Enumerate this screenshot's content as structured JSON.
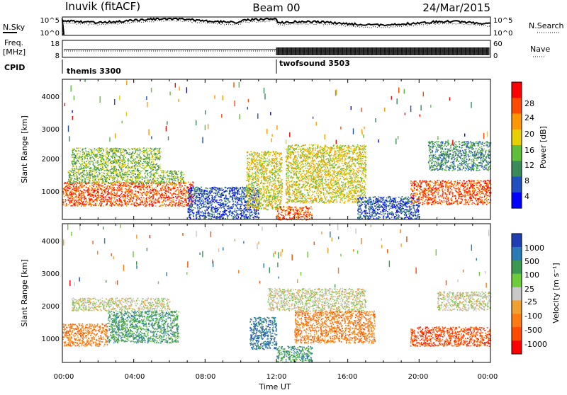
{
  "header": {
    "station": "Inuvik (fitACF)",
    "beam": "Beam 00",
    "date": "24/Mar/2015"
  },
  "panels": {
    "nsky_label": "N.Sky",
    "nsky_ticks": [
      "10^5",
      "10^0"
    ],
    "nsearch_label": "N.Search",
    "freq_label": "Freq.",
    "freq_unit": "[MHz]",
    "freq_ticks": [
      "18",
      "8"
    ],
    "nave_label": "Nave",
    "nave_ticks": [
      "60",
      "0"
    ],
    "cpid_label": "CPID",
    "cpid_modes": [
      {
        "name": "themis 3300",
        "start_hour": 0
      },
      {
        "name": "twofsound 3503",
        "start_hour": 12
      }
    ]
  },
  "axes": {
    "ylabel": "Slant Range [km]",
    "yticks": [
      "1000",
      "2000",
      "3000",
      "4000"
    ],
    "xlabel": "Time UT",
    "xticks": [
      "00:00",
      "04:00",
      "08:00",
      "12:00",
      "16:00",
      "20:00",
      "00:00"
    ]
  },
  "colorbars": {
    "power": {
      "label": "Power [dB]",
      "ticks": [
        "4",
        "8",
        "12",
        "16",
        "20",
        "24",
        "28"
      ],
      "colors": [
        "#0000ff",
        "#2050c0",
        "#3a8a5a",
        "#5fbf3a",
        "#e8d000",
        "#ff9800",
        "#ff4a00",
        "#ff0000"
      ]
    },
    "velocity": {
      "label": "Velocity [m s⁻¹]",
      "ticks": [
        "1000",
        "500",
        "100",
        "25",
        "-25",
        "-100",
        "-500",
        "-1000"
      ],
      "colors": [
        "#1e3fb4",
        "#2a7ab8",
        "#3c9a50",
        "#6ecb3a",
        "#c8c8c8",
        "#f0a030",
        "#ff7a10",
        "#ff4a00",
        "#ff0000"
      ]
    }
  },
  "chart_data": {
    "type": "heatmap",
    "x_range_hours": [
      0,
      24
    ],
    "y_range_km": [
      180,
      4500
    ],
    "power_regions": [
      {
        "t0": 0.0,
        "t1": 7.3,
        "r0": 600,
        "r1": 1350,
        "level": 28
      },
      {
        "t0": 0.3,
        "t1": 6.8,
        "r0": 1300,
        "r1": 1700,
        "level": 14
      },
      {
        "t0": 0.5,
        "t1": 5.5,
        "r0": 1700,
        "r1": 2400,
        "level": 16
      },
      {
        "t0": 7.0,
        "t1": 11.0,
        "r0": 200,
        "r1": 1200,
        "level": 8
      },
      {
        "t0": 10.3,
        "t1": 12.3,
        "r0": 500,
        "r1": 2300,
        "level": 20
      },
      {
        "t0": 12.0,
        "t1": 14.0,
        "r0": 180,
        "r1": 600,
        "level": 28
      },
      {
        "t0": 12.5,
        "t1": 17.0,
        "r0": 700,
        "r1": 2500,
        "level": 18
      },
      {
        "t0": 16.5,
        "t1": 20.0,
        "r0": 200,
        "r1": 900,
        "level": 6
      },
      {
        "t0": 19.5,
        "t1": 24.0,
        "r0": 650,
        "r1": 1400,
        "level": 26
      },
      {
        "t0": 20.5,
        "t1": 24.0,
        "r0": 1700,
        "r1": 2600,
        "level": 10
      }
    ],
    "velocity_regions": [
      {
        "t0": 0.0,
        "t1": 2.5,
        "r0": 700,
        "r1": 1400,
        "value": -100
      },
      {
        "t0": 2.5,
        "t1": 6.5,
        "r0": 800,
        "r1": 1800,
        "value": 100
      },
      {
        "t0": 0.5,
        "t1": 6.0,
        "r0": 1800,
        "r1": 2200,
        "value": 0
      },
      {
        "t0": 10.5,
        "t1": 12.0,
        "r0": 600,
        "r1": 1600,
        "value": 500
      },
      {
        "t0": 12.0,
        "t1": 14.0,
        "r0": 200,
        "r1": 700,
        "value": 100
      },
      {
        "t0": 13.0,
        "t1": 17.5,
        "r0": 800,
        "r1": 1800,
        "value": -100
      },
      {
        "t0": 11.5,
        "t1": 17.0,
        "r0": 1800,
        "r1": 2500,
        "value": 0
      },
      {
        "t0": 19.5,
        "t1": 24.0,
        "r0": 700,
        "r1": 1300,
        "value": -500
      },
      {
        "t0": 21.0,
        "t1": 24.0,
        "r0": 1800,
        "r1": 2400,
        "value": 0
      }
    ]
  }
}
